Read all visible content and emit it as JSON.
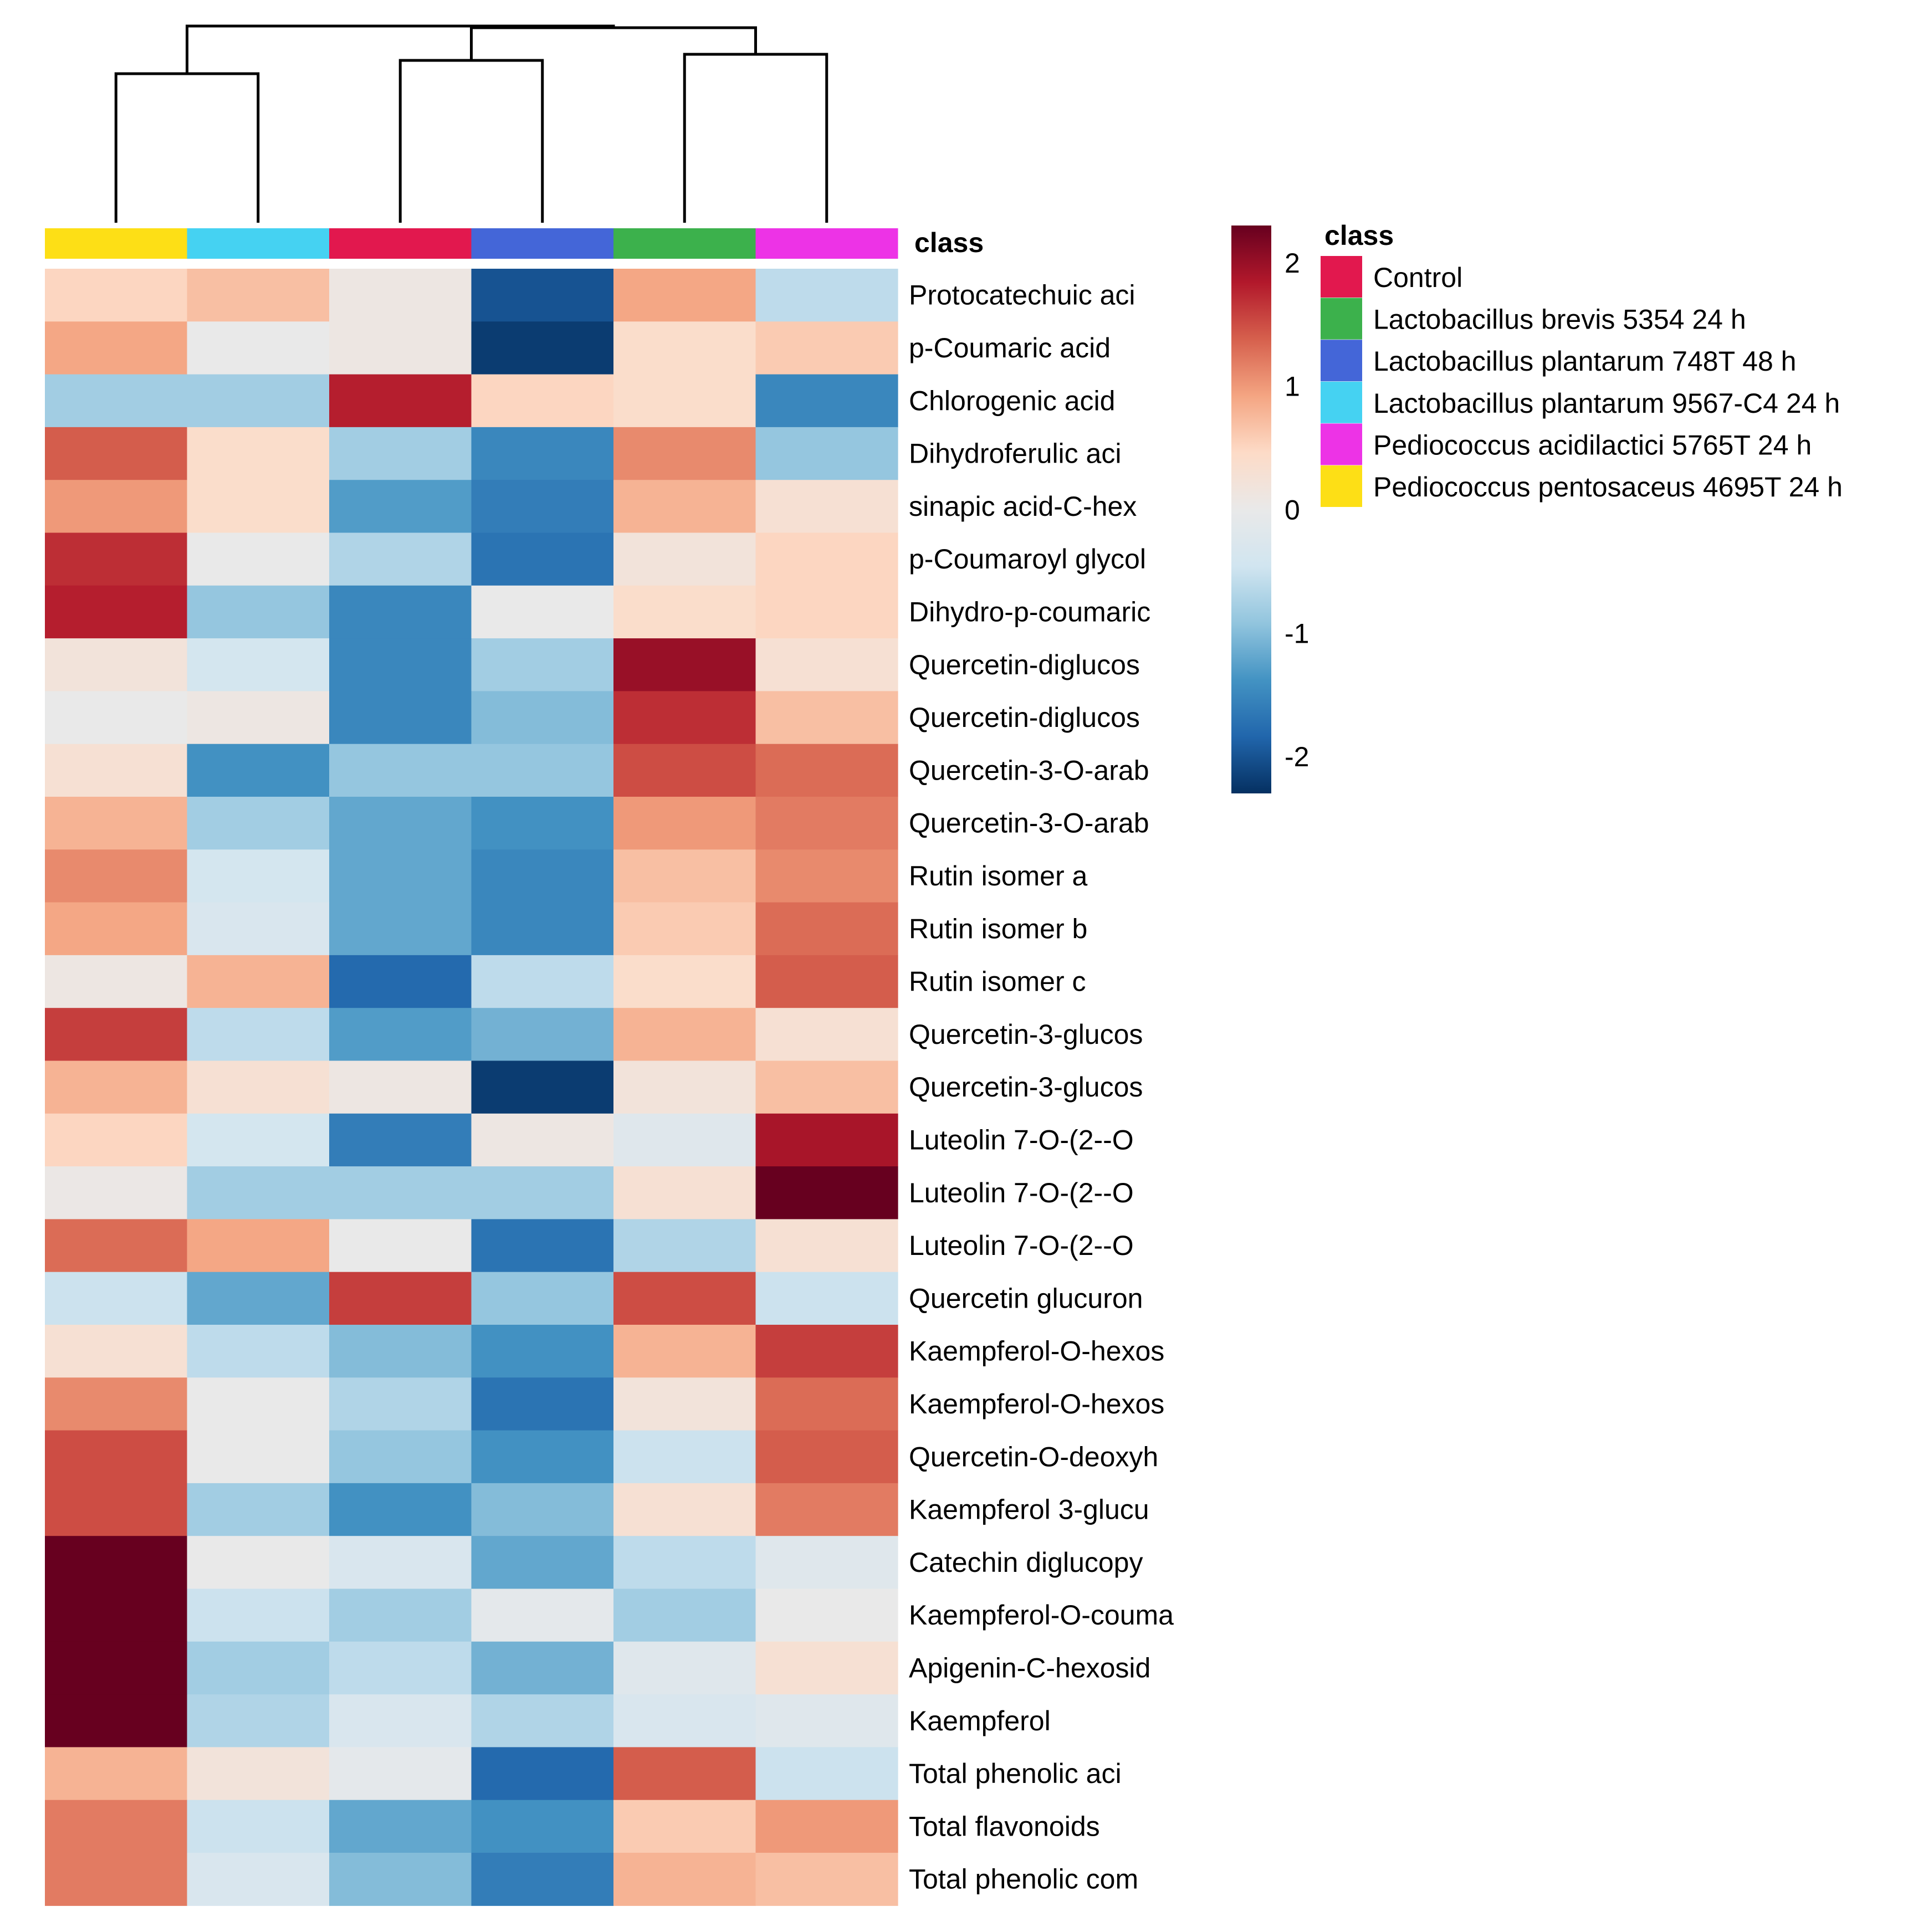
{
  "chart_data": {
    "type": "heatmap",
    "columns": [
      "Pediococcus pentosaceus 4695T 24 h",
      "Lactobacillus plantarum 9567-C4 24 h",
      "Control",
      "Lactobacillus plantarum 748T 48 h",
      "Lactobacillus brevis 5354 24 h",
      "Pediococcus acidilactici 5765T 24 h"
    ],
    "class_bar_label": "class",
    "rows": [
      "Protocatechuic aci",
      "p-Coumaric acid",
      "Chlorogenic acid",
      "Dihydroferulic aci",
      "sinapic acid-C-hex",
      "p-Coumaroyl glycol",
      "Dihydro-p-coumaric",
      "Quercetin-diglucos",
      "Quercetin-diglucos",
      "Quercetin-3-O-arab",
      "Quercetin-3-O-arab",
      "Rutin isomer a",
      "Rutin isomer b",
      "Rutin isomer c",
      "Quercetin-3-glucos",
      "Quercetin-3-glucos",
      "Luteolin 7-O-(2--O",
      "Luteolin 7-O-(2--O",
      "Luteolin 7-O-(2--O",
      "Quercetin glucuron",
      "Kaempferol-O-hexos",
      "Kaempferol-O-hexos",
      "Quercetin-O-deoxyh",
      "Kaempferol 3-glucu",
      "Catechin diglucopy",
      "Kaempferol-O-couma",
      "Apigenin-C-hexosid",
      "Kaempferol",
      "Total phenolic aci",
      "Total flavonoids",
      "Total phenolic com"
    ],
    "values": [
      [
        0.5,
        0.7,
        0.1,
        -2.0,
        0.9,
        -0.6
      ],
      [
        0.9,
        0.0,
        0.1,
        -2.2,
        0.4,
        0.6
      ],
      [
        -0.8,
        -0.8,
        1.8,
        0.5,
        0.4,
        -1.5
      ],
      [
        1.4,
        0.4,
        -0.8,
        -1.5,
        1.1,
        -0.9
      ],
      [
        1.0,
        0.4,
        -1.3,
        -1.6,
        0.8,
        0.3
      ],
      [
        1.7,
        0.0,
        -0.7,
        -1.7,
        0.2,
        0.5
      ],
      [
        1.8,
        -0.9,
        -1.5,
        0.0,
        0.4,
        0.5
      ],
      [
        0.2,
        -0.4,
        -1.5,
        -0.8,
        2.0,
        0.3
      ],
      [
        0.0,
        0.1,
        -1.5,
        -1.0,
        1.7,
        0.7
      ],
      [
        0.3,
        -1.4,
        -0.9,
        -0.9,
        1.5,
        1.3
      ],
      [
        0.8,
        -0.8,
        -1.2,
        -1.4,
        1.0,
        1.2
      ],
      [
        1.1,
        -0.4,
        -1.2,
        -1.5,
        0.7,
        1.1
      ],
      [
        0.9,
        -0.3,
        -1.2,
        -1.5,
        0.6,
        1.3
      ],
      [
        0.1,
        0.8,
        -1.8,
        -0.6,
        0.4,
        1.4
      ],
      [
        1.6,
        -0.6,
        -1.3,
        -1.1,
        0.8,
        0.3
      ],
      [
        0.8,
        0.3,
        0.1,
        -2.2,
        0.2,
        0.7
      ],
      [
        0.5,
        -0.4,
        -1.6,
        0.1,
        -0.2,
        1.9
      ],
      [
        0.05,
        -0.8,
        -0.8,
        -0.8,
        0.3,
        2.4
      ],
      [
        1.3,
        0.9,
        0.0,
        -1.7,
        -0.7,
        0.3
      ],
      [
        -0.5,
        -1.2,
        1.6,
        -0.9,
        1.5,
        -0.5
      ],
      [
        0.3,
        -0.6,
        -1.0,
        -1.4,
        0.8,
        1.6
      ],
      [
        1.1,
        0.0,
        -0.7,
        -1.7,
        0.2,
        1.3
      ],
      [
        1.5,
        0.0,
        -0.9,
        -1.4,
        -0.5,
        1.4
      ],
      [
        1.5,
        -0.8,
        -1.4,
        -1.0,
        0.3,
        1.2
      ],
      [
        2.5,
        0.0,
        -0.3,
        -1.2,
        -0.6,
        -0.2
      ],
      [
        2.5,
        -0.5,
        -0.8,
        -0.1,
        -0.8,
        0.0
      ],
      [
        2.3,
        -0.8,
        -0.6,
        -1.1,
        -0.2,
        0.3
      ],
      [
        2.6,
        -0.7,
        -0.3,
        -0.7,
        -0.3,
        -0.2
      ],
      [
        0.8,
        0.2,
        -0.1,
        -1.8,
        1.4,
        -0.5
      ],
      [
        1.2,
        -0.5,
        -1.2,
        -1.4,
        0.6,
        1.0
      ],
      [
        1.2,
        -0.3,
        -1.0,
        -1.6,
        0.8,
        0.7
      ]
    ],
    "colorbar": {
      "ticks": [
        2,
        1,
        0,
        -1,
        -2
      ],
      "labels": [
        "2",
        "1",
        "0",
        "-1",
        "-2"
      ],
      "range": [
        -2.3,
        2.3
      ]
    },
    "legend": {
      "title": "class",
      "placement": "top-right",
      "items": [
        {
          "label": "Control",
          "color": "#E2184E"
        },
        {
          "label": "Lactobacillus brevis 5354 24 h",
          "color": "#3CB14C"
        },
        {
          "label": "Lactobacillus plantarum 748T 48 h",
          "color": "#4466D8"
        },
        {
          "label": "Lactobacillus plantarum 9567-C4 24 h",
          "color": "#45D2F2"
        },
        {
          "label": "Pediococcus acidilactici 5765T 24 h",
          "color": "#ED33E6"
        },
        {
          "label": "Pediococcus pentosaceus 4695T 24 h",
          "color": "#FDDF16"
        }
      ]
    },
    "column_class_colors": [
      "#FDDF16",
      "#45D2F2",
      "#E2184E",
      "#4466D8",
      "#3CB14C",
      "#ED33E6"
    ],
    "dendrogram": "columns",
    "colorscale": [
      "#053061",
      "#2166AC",
      "#4393C3",
      "#92C5DE",
      "#D1E5F0",
      "#E9E9E9",
      "#FDDBC7",
      "#F4A582",
      "#D6604D",
      "#B2182B",
      "#67001F"
    ]
  }
}
